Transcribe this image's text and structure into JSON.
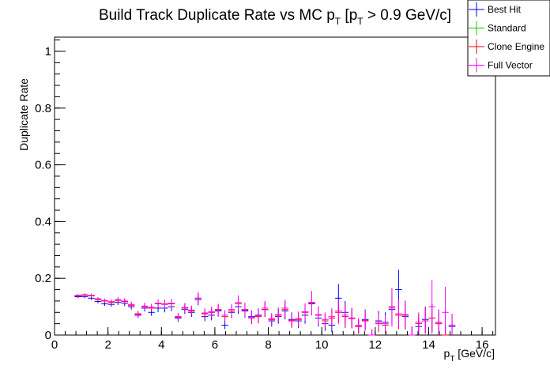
{
  "chart_data": {
    "type": "scatter",
    "title": "Build Track Duplicate Rate vs MC p",
    "title_sub1": "T",
    "title_mid": " [p",
    "title_sub2": "T",
    "title_end": " > 0.9 GeV/c]",
    "xlabel": "p",
    "xlabel_sub": "T",
    "xlabel_unit": " [GeV/c]",
    "ylabel": "Duplicate Rate",
    "xlim": [
      0,
      16.5
    ],
    "ylim": [
      0,
      1.05
    ],
    "xticks": [
      0,
      2,
      4,
      6,
      8,
      10,
      12,
      14,
      16
    ],
    "xtick_labels": [
      "0",
      "2",
      "4",
      "6",
      "8",
      "10",
      "12",
      "14",
      "16"
    ],
    "yticks": [
      0,
      0.2,
      0.4,
      0.6,
      0.8,
      1
    ],
    "ytick_labels": [
      "0",
      "0.2",
      "0.4",
      "0.6",
      "0.8",
      "1"
    ],
    "bin_half_width": 0.125,
    "legend_position": "top-right",
    "series": [
      {
        "name": "Best Hit",
        "color": "#0000ff",
        "points": [
          [
            0.875,
            0.135,
            0.005
          ],
          [
            1.125,
            0.135,
            0.005
          ],
          [
            1.375,
            0.13,
            0.006
          ],
          [
            1.625,
            0.118,
            0.006
          ],
          [
            1.875,
            0.11,
            0.007
          ],
          [
            2.125,
            0.108,
            0.008
          ],
          [
            2.375,
            0.115,
            0.009
          ],
          [
            2.625,
            0.112,
            0.01
          ],
          [
            2.875,
            0.1,
            0.01
          ],
          [
            3.125,
            0.07,
            0.01
          ],
          [
            3.375,
            0.095,
            0.012
          ],
          [
            3.625,
            0.08,
            0.012
          ],
          [
            3.875,
            0.095,
            0.014
          ],
          [
            4.125,
            0.095,
            0.015
          ],
          [
            4.375,
            0.1,
            0.016
          ],
          [
            4.625,
            0.06,
            0.013
          ],
          [
            4.875,
            0.09,
            0.016
          ],
          [
            5.125,
            0.08,
            0.016
          ],
          [
            5.375,
            0.125,
            0.02
          ],
          [
            5.625,
            0.065,
            0.016
          ],
          [
            5.875,
            0.07,
            0.018
          ],
          [
            6.125,
            0.085,
            0.02
          ],
          [
            6.375,
            0.035,
            0.014
          ],
          [
            6.625,
            0.08,
            0.02
          ],
          [
            6.875,
            0.1,
            0.025
          ],
          [
            7.125,
            0.085,
            0.024
          ],
          [
            7.375,
            0.065,
            0.022
          ],
          [
            7.625,
            0.07,
            0.024
          ],
          [
            7.875,
            0.09,
            0.026
          ],
          [
            8.125,
            0.05,
            0.02
          ],
          [
            8.375,
            0.065,
            0.025
          ],
          [
            8.625,
            0.085,
            0.03
          ],
          [
            8.875,
            0.055,
            0.025
          ],
          [
            9.125,
            0.05,
            0.025
          ],
          [
            9.375,
            0.07,
            0.03
          ],
          [
            9.625,
            0.11,
            0.04
          ],
          [
            9.875,
            0.06,
            0.03
          ],
          [
            10.125,
            0.04,
            0.025
          ],
          [
            10.375,
            0.035,
            0.025
          ],
          [
            10.625,
            0.13,
            0.05
          ],
          [
            10.875,
            0.08,
            0.04
          ],
          [
            11.125,
            0.06,
            0.035
          ],
          [
            11.375,
            0.03,
            0.025
          ],
          [
            11.625,
            0.055,
            0.035
          ],
          [
            11.875,
            0.0,
            0.02
          ],
          [
            12.125,
            0.05,
            0.035
          ],
          [
            12.375,
            0.045,
            0.035
          ],
          [
            12.625,
            0.09,
            0.05
          ],
          [
            12.875,
            0.16,
            0.07
          ],
          [
            13.125,
            0.065,
            0.045
          ],
          [
            13.375,
            0.0,
            0.03
          ],
          [
            13.625,
            0.03,
            0.03
          ],
          [
            13.875,
            0.055,
            0.045
          ],
          [
            14.125,
            0.06,
            0.05
          ],
          [
            14.375,
            0.045,
            0.045
          ],
          [
            14.625,
            0.0,
            0.035
          ],
          [
            14.875,
            0.03,
            0.035
          ]
        ]
      },
      {
        "name": "Standard",
        "color": "#00cc00",
        "points": []
      },
      {
        "name": "Clone Engine",
        "color": "#ff0000",
        "points": [
          [
            0.875,
            0.138,
            0.005
          ],
          [
            1.125,
            0.142,
            0.005
          ],
          [
            1.375,
            0.14,
            0.006
          ],
          [
            1.625,
            0.125,
            0.006
          ],
          [
            1.875,
            0.12,
            0.007
          ],
          [
            2.125,
            0.115,
            0.008
          ],
          [
            2.375,
            0.122,
            0.009
          ],
          [
            2.625,
            0.118,
            0.01
          ],
          [
            2.875,
            0.105,
            0.01
          ],
          [
            3.125,
            0.075,
            0.01
          ],
          [
            3.375,
            0.1,
            0.012
          ],
          [
            3.625,
            0.095,
            0.012
          ],
          [
            3.875,
            0.11,
            0.014
          ],
          [
            4.125,
            0.11,
            0.015
          ],
          [
            4.375,
            0.11,
            0.016
          ],
          [
            4.625,
            0.065,
            0.013
          ],
          [
            4.875,
            0.095,
            0.016
          ],
          [
            5.125,
            0.085,
            0.016
          ],
          [
            5.375,
            0.13,
            0.02
          ],
          [
            5.625,
            0.075,
            0.016
          ],
          [
            5.875,
            0.08,
            0.018
          ],
          [
            6.125,
            0.09,
            0.02
          ],
          [
            6.375,
            0.065,
            0.018
          ],
          [
            6.625,
            0.085,
            0.02
          ],
          [
            6.875,
            0.11,
            0.025
          ],
          [
            7.125,
            0.09,
            0.024
          ],
          [
            7.375,
            0.06,
            0.022
          ],
          [
            7.625,
            0.065,
            0.024
          ],
          [
            7.875,
            0.09,
            0.026
          ],
          [
            8.125,
            0.055,
            0.02
          ],
          [
            8.375,
            0.07,
            0.025
          ],
          [
            8.625,
            0.09,
            0.03
          ],
          [
            8.875,
            0.05,
            0.025
          ],
          [
            9.125,
            0.055,
            0.025
          ],
          [
            9.375,
            0.08,
            0.03
          ],
          [
            9.625,
            0.115,
            0.04
          ],
          [
            9.875,
            0.07,
            0.03
          ],
          [
            10.125,
            0.05,
            0.025
          ],
          [
            10.375,
            0.06,
            0.03
          ],
          [
            10.625,
            0.08,
            0.04
          ],
          [
            10.875,
            0.065,
            0.04
          ],
          [
            11.125,
            0.06,
            0.035
          ],
          [
            11.375,
            0.03,
            0.025
          ],
          [
            11.625,
            0.05,
            0.035
          ],
          [
            11.875,
            0.0,
            0.02
          ],
          [
            12.125,
            0.04,
            0.03
          ],
          [
            12.375,
            0.035,
            0.03
          ],
          [
            12.625,
            0.1,
            0.065
          ],
          [
            12.875,
            0.07,
            0.05
          ],
          [
            13.125,
            0.07,
            0.05
          ],
          [
            13.375,
            0.0,
            0.03
          ],
          [
            13.625,
            0.04,
            0.035
          ],
          [
            13.875,
            0.05,
            0.045
          ],
          [
            14.125,
            0.06,
            0.05
          ],
          [
            14.375,
            0.04,
            0.04
          ],
          [
            14.625,
            0.0,
            0.035
          ],
          [
            14.875,
            0.035,
            0.04
          ]
        ]
      },
      {
        "name": "Full Vector",
        "color": "#ff00ff",
        "points": [
          [
            0.875,
            0.14,
            0.005
          ],
          [
            1.125,
            0.14,
            0.005
          ],
          [
            1.375,
            0.138,
            0.006
          ],
          [
            1.625,
            0.128,
            0.006
          ],
          [
            1.875,
            0.122,
            0.007
          ],
          [
            2.125,
            0.118,
            0.008
          ],
          [
            2.375,
            0.125,
            0.009
          ],
          [
            2.625,
            0.12,
            0.01
          ],
          [
            2.875,
            0.108,
            0.01
          ],
          [
            3.125,
            0.072,
            0.01
          ],
          [
            3.375,
            0.102,
            0.012
          ],
          [
            3.625,
            0.098,
            0.012
          ],
          [
            3.875,
            0.112,
            0.014
          ],
          [
            4.125,
            0.108,
            0.015
          ],
          [
            4.375,
            0.112,
            0.016
          ],
          [
            4.625,
            0.063,
            0.013
          ],
          [
            4.875,
            0.097,
            0.016
          ],
          [
            5.125,
            0.088,
            0.016
          ],
          [
            5.375,
            0.13,
            0.02
          ],
          [
            5.625,
            0.078,
            0.016
          ],
          [
            5.875,
            0.082,
            0.018
          ],
          [
            6.125,
            0.088,
            0.02
          ],
          [
            6.375,
            0.07,
            0.018
          ],
          [
            6.625,
            0.09,
            0.02
          ],
          [
            6.875,
            0.115,
            0.025
          ],
          [
            7.125,
            0.088,
            0.024
          ],
          [
            7.375,
            0.062,
            0.022
          ],
          [
            7.625,
            0.068,
            0.024
          ],
          [
            7.875,
            0.095,
            0.026
          ],
          [
            8.125,
            0.058,
            0.02
          ],
          [
            8.375,
            0.072,
            0.025
          ],
          [
            8.625,
            0.095,
            0.03
          ],
          [
            8.875,
            0.052,
            0.025
          ],
          [
            9.125,
            0.058,
            0.025
          ],
          [
            9.375,
            0.082,
            0.03
          ],
          [
            9.625,
            0.112,
            0.04
          ],
          [
            9.875,
            0.072,
            0.03
          ],
          [
            10.125,
            0.055,
            0.025
          ],
          [
            10.375,
            0.065,
            0.03
          ],
          [
            10.625,
            0.085,
            0.04
          ],
          [
            10.875,
            0.07,
            0.04
          ],
          [
            11.125,
            0.058,
            0.035
          ],
          [
            11.375,
            0.035,
            0.025
          ],
          [
            11.625,
            0.052,
            0.035
          ],
          [
            11.875,
            0.0,
            0.02
          ],
          [
            12.125,
            0.045,
            0.03
          ],
          [
            12.375,
            0.04,
            0.03
          ],
          [
            12.625,
            0.095,
            0.065
          ],
          [
            12.875,
            0.075,
            0.05
          ],
          [
            13.125,
            0.072,
            0.05
          ],
          [
            13.375,
            0.0,
            0.03
          ],
          [
            13.625,
            0.045,
            0.035
          ],
          [
            13.875,
            0.05,
            0.045
          ],
          [
            14.125,
            0.1,
            0.095
          ],
          [
            14.375,
            0.045,
            0.045
          ],
          [
            14.625,
            0.08,
            0.09
          ],
          [
            14.875,
            0.035,
            0.04
          ]
        ]
      }
    ]
  }
}
